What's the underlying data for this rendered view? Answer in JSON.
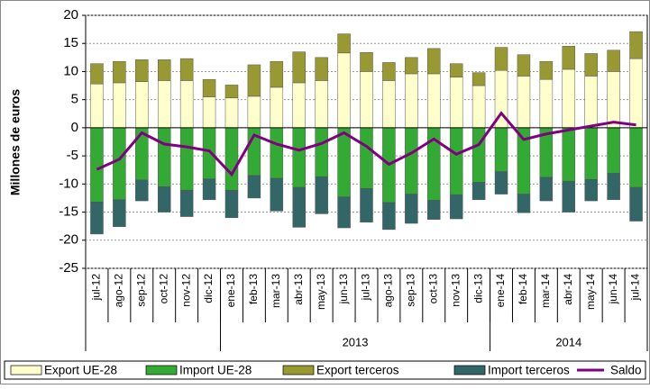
{
  "chart_data": {
    "type": "bar",
    "y_label": "Millones de euros",
    "categories": [
      "jul-12",
      "ago-12",
      "sep-12",
      "oct-12",
      "nov-12",
      "dic-12",
      "ene-13",
      "feb-13",
      "mar-13",
      "abr-13",
      "may-13",
      "jun-13",
      "jul-13",
      "ago-13",
      "sep-13",
      "oct-13",
      "nov-13",
      "dic-13",
      "ene-14",
      "feb-14",
      "mar-14",
      "abr-14",
      "may-14",
      "jun-14",
      "jul-14"
    ],
    "groups": [
      {
        "label": null,
        "count": 6
      },
      {
        "label": "2013",
        "count": 12
      },
      {
        "label": "2014",
        "count": 7
      }
    ],
    "series": [
      {
        "name": "Export UE-28",
        "color": "#ffffcc",
        "stack": "pos",
        "values": [
          7.8,
          8.0,
          8.2,
          8.4,
          8.4,
          5.5,
          5.3,
          5.6,
          7.2,
          8.0,
          8.4,
          13.3,
          10.0,
          8.4,
          9.6,
          9.6,
          9.0,
          7.5,
          10.2,
          9.2,
          8.6,
          10.4,
          9.2,
          10.0,
          12.3
        ]
      },
      {
        "name": "Import UE-28",
        "color": "#33aa33",
        "stack": "neg",
        "values": [
          -13.2,
          -12.8,
          -9.3,
          -10.5,
          -11.1,
          -9.1,
          -11.1,
          -8.5,
          -9.0,
          -10.6,
          -8.7,
          -12.3,
          -10.8,
          -13.3,
          -11.8,
          -12.9,
          -11.9,
          -9.7,
          -7.8,
          -11.8,
          -8.8,
          -9.5,
          -9.2,
          -8.1,
          -10.6
        ]
      },
      {
        "name": "Export terceros",
        "color": "#999933",
        "stack": "pos",
        "values": [
          3.6,
          3.8,
          3.9,
          3.7,
          3.9,
          3.1,
          2.3,
          5.6,
          4.6,
          5.5,
          4.1,
          3.4,
          3.4,
          3.2,
          2.9,
          4.5,
          2.4,
          2.3,
          4.1,
          3.8,
          3.2,
          4.1,
          4.0,
          3.8,
          4.8
        ]
      },
      {
        "name": "Import terceros",
        "color": "#336666",
        "stack": "neg",
        "values": [
          -5.7,
          -4.8,
          -3.7,
          -4.5,
          -4.7,
          -3.7,
          -4.9,
          -4.0,
          -5.8,
          -7.1,
          -6.6,
          -5.5,
          -6.0,
          -4.8,
          -5.2,
          -3.4,
          -4.3,
          -3.1,
          -4.0,
          -3.3,
          -4.2,
          -5.5,
          -3.8,
          -4.7,
          -6.0
        ]
      },
      {
        "name": "Saldo",
        "color": "#800080",
        "type": "line",
        "values": [
          -7.4,
          -5.6,
          -0.9,
          -2.9,
          -3.4,
          -4.1,
          -8.3,
          -1.3,
          -2.9,
          -4.0,
          -2.8,
          -0.9,
          -3.3,
          -6.5,
          -4.5,
          -2.0,
          -4.7,
          -3.0,
          2.6,
          -2.1,
          -1.1,
          -0.4,
          0.3,
          1.0,
          0.5
        ]
      }
    ],
    "ylim": [
      -25,
      20
    ],
    "yticks": [
      -25,
      -20,
      -15,
      -10,
      -5,
      0,
      5,
      10,
      15,
      20
    ],
    "grid": true,
    "legend": "bottom"
  }
}
